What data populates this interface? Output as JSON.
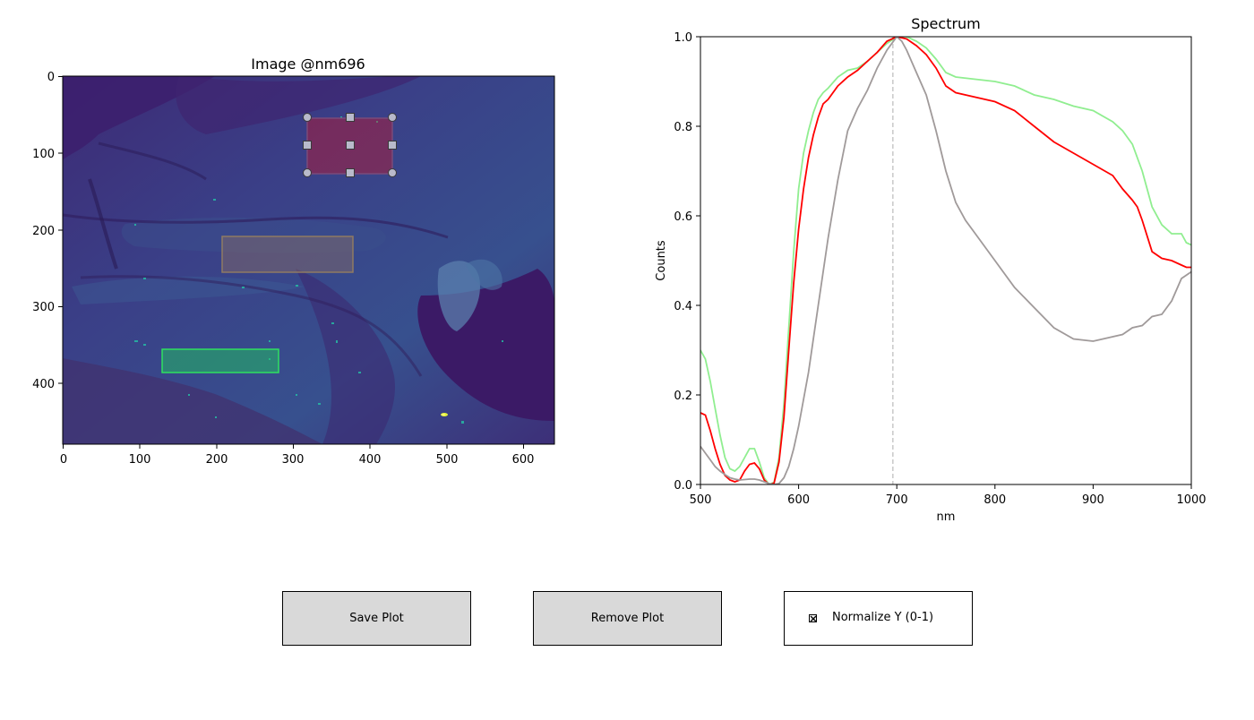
{
  "image_panel": {
    "title": "Image @nm696",
    "x_ticks": [
      "0",
      "100",
      "200",
      "300",
      "400",
      "500",
      "600"
    ],
    "y_ticks": [
      "0",
      "100",
      "200",
      "300",
      "400"
    ],
    "colormap": "viridis"
  },
  "rois": [
    {
      "name": "roi-red",
      "color": "#ff0000",
      "selected": true,
      "x": [
        320,
        430
      ],
      "y": [
        55,
        127
      ]
    },
    {
      "name": "roi-gray",
      "color": "#a0a0a0",
      "selected": false,
      "x": [
        208,
        378
      ],
      "y": [
        208,
        255
      ]
    },
    {
      "name": "roi-green",
      "color": "#7cfc00",
      "selected": false,
      "x": [
        130,
        282
      ],
      "y": [
        356,
        387
      ]
    }
  ],
  "chart_data": {
    "type": "line",
    "title": "Spectrum",
    "xlabel": "nm",
    "ylabel": "Counts",
    "xlim": [
      500,
      1000
    ],
    "ylim": [
      0,
      1
    ],
    "x_ticks": [
      500,
      600,
      700,
      800,
      900,
      1000
    ],
    "y_ticks": [
      0.0,
      0.2,
      0.4,
      0.6,
      0.8,
      1.0
    ],
    "y_tick_labels": [
      "0.0",
      "0.2",
      "0.4",
      "0.6",
      "0.8",
      "1.0"
    ],
    "marker_line_x": 696,
    "series": [
      {
        "color": "#90ee90",
        "x": [
          500,
          505,
          510,
          515,
          520,
          525,
          530,
          535,
          540,
          545,
          550,
          555,
          560,
          565,
          570,
          575,
          580,
          585,
          590,
          595,
          600,
          605,
          610,
          615,
          620,
          625,
          630,
          640,
          650,
          660,
          670,
          680,
          690,
          700,
          710,
          720,
          730,
          740,
          750,
          760,
          780,
          800,
          820,
          840,
          860,
          880,
          900,
          920,
          930,
          940,
          950,
          960,
          970,
          980,
          990,
          995,
          1000
        ],
        "y": [
          0.3,
          0.28,
          0.23,
          0.17,
          0.11,
          0.06,
          0.035,
          0.03,
          0.04,
          0.06,
          0.08,
          0.08,
          0.05,
          0.015,
          0.0,
          0.005,
          0.06,
          0.18,
          0.35,
          0.52,
          0.66,
          0.74,
          0.79,
          0.83,
          0.86,
          0.875,
          0.885,
          0.91,
          0.925,
          0.93,
          0.945,
          0.965,
          0.985,
          1.0,
          1.0,
          0.99,
          0.975,
          0.95,
          0.92,
          0.91,
          0.905,
          0.9,
          0.89,
          0.87,
          0.86,
          0.845,
          0.835,
          0.81,
          0.79,
          0.76,
          0.7,
          0.62,
          0.58,
          0.56,
          0.56,
          0.54,
          0.535
        ]
      },
      {
        "color": "#ff0000",
        "x": [
          500,
          505,
          510,
          515,
          520,
          525,
          530,
          535,
          540,
          545,
          550,
          555,
          560,
          565,
          570,
          575,
          580,
          585,
          590,
          595,
          600,
          605,
          610,
          615,
          620,
          625,
          630,
          640,
          650,
          660,
          670,
          680,
          690,
          700,
          710,
          720,
          730,
          740,
          750,
          760,
          780,
          800,
          820,
          840,
          860,
          880,
          900,
          920,
          930,
          940,
          945,
          950,
          960,
          970,
          980,
          990,
          995,
          1000
        ],
        "y": [
          0.16,
          0.155,
          0.12,
          0.08,
          0.045,
          0.02,
          0.01,
          0.006,
          0.01,
          0.03,
          0.045,
          0.048,
          0.035,
          0.01,
          0.0,
          0.003,
          0.05,
          0.15,
          0.3,
          0.45,
          0.57,
          0.66,
          0.73,
          0.78,
          0.82,
          0.85,
          0.86,
          0.89,
          0.91,
          0.925,
          0.945,
          0.965,
          0.99,
          1.0,
          0.995,
          0.98,
          0.96,
          0.93,
          0.89,
          0.875,
          0.865,
          0.855,
          0.835,
          0.8,
          0.765,
          0.74,
          0.715,
          0.69,
          0.66,
          0.635,
          0.62,
          0.59,
          0.52,
          0.505,
          0.5,
          0.49,
          0.485,
          0.485
        ]
      },
      {
        "color": "#a09a9a",
        "x": [
          500,
          505,
          510,
          515,
          520,
          525,
          530,
          535,
          540,
          545,
          550,
          555,
          560,
          565,
          570,
          575,
          580,
          585,
          590,
          595,
          600,
          610,
          620,
          630,
          640,
          650,
          660,
          670,
          680,
          690,
          700,
          705,
          710,
          720,
          730,
          740,
          750,
          760,
          770,
          780,
          800,
          820,
          840,
          860,
          880,
          900,
          910,
          920,
          930,
          940,
          950,
          960,
          970,
          980,
          990,
          1000
        ],
        "y": [
          0.085,
          0.07,
          0.055,
          0.04,
          0.03,
          0.022,
          0.015,
          0.012,
          0.01,
          0.011,
          0.012,
          0.012,
          0.01,
          0.006,
          0.002,
          0.0,
          0.002,
          0.015,
          0.04,
          0.08,
          0.13,
          0.25,
          0.4,
          0.55,
          0.68,
          0.79,
          0.84,
          0.88,
          0.93,
          0.97,
          1.0,
          0.99,
          0.97,
          0.92,
          0.87,
          0.79,
          0.7,
          0.63,
          0.59,
          0.56,
          0.5,
          0.44,
          0.395,
          0.35,
          0.325,
          0.32,
          0.325,
          0.33,
          0.335,
          0.35,
          0.355,
          0.375,
          0.38,
          0.41,
          0.46,
          0.475
        ]
      }
    ]
  },
  "controls": {
    "save_label": "Save Plot",
    "remove_label": "Remove Plot",
    "normalize_label": "Normalize Y (0-1)",
    "normalize_checked": true
  }
}
